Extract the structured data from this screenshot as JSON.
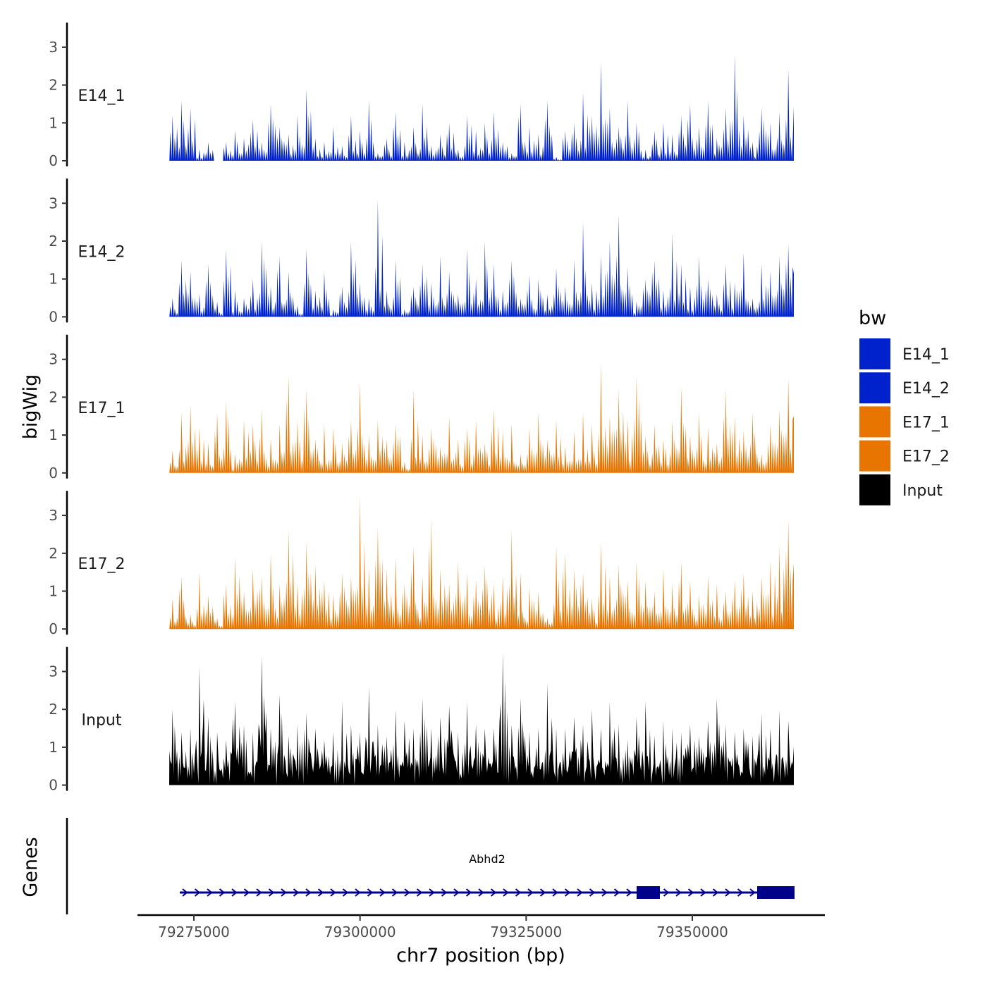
{
  "chart_data": {
    "type": "area",
    "title": "",
    "xlabel": "chr7 position (bp)",
    "ylabel": "bigWig",
    "gene_track_label": "Genes",
    "xlim": [
      79271290,
      79365275
    ],
    "x_ticks": [
      79275000,
      79300000,
      79325000,
      79350000
    ],
    "x_tick_labels": [
      "79275000",
      "79300000",
      "79325000",
      "79350000"
    ],
    "ylim": [
      0,
      3.6
    ],
    "y_ticks": [
      0,
      1,
      2,
      3
    ],
    "y_tick_labels": [
      "0",
      "1",
      "2",
      "3"
    ],
    "legend": {
      "title": "bw",
      "position": "right",
      "entries": [
        "E14_1",
        "E14_2",
        "E17_1",
        "E17_2",
        "Input"
      ]
    },
    "series": [
      {
        "name": "E14_1",
        "color": "#0022CC",
        "values": [
          1.2,
          1.6,
          1.4,
          0.3,
          0.5,
          0,
          0.5,
          0.8,
          0.6,
          1.1,
          0.5,
          1.5,
          0.9,
          0.7,
          1.2,
          1.9,
          0.6,
          0.5,
          0.9,
          0.4,
          1.2,
          0.8,
          1.6,
          0.2,
          0.6,
          1.3,
          0.5,
          0.9,
          1.5,
          0.4,
          0.7,
          1.0,
          0.3,
          1.2,
          0.8,
          1.0,
          1.3,
          0.5,
          0.2,
          1.5,
          0.9,
          0.7,
          1.6,
          0.1,
          0.8,
          1.0,
          1.8,
          1.2,
          2.6,
          1.4,
          0.9,
          1.6,
          1.0,
          0.3,
          0.8,
          1.0,
          0.7,
          1.2,
          1.5,
          0.9,
          1.6,
          0.6,
          1.4,
          2.8,
          1.2,
          0.5,
          1.4,
          1.0,
          1.3,
          2.4
        ]
      },
      {
        "name": "E14_2",
        "color": "#0022CC",
        "values": [
          0.5,
          1.5,
          1.2,
          0.6,
          1.4,
          0.4,
          1.8,
          0.7,
          0.5,
          1.0,
          2.0,
          0.8,
          1.6,
          1.2,
          0.3,
          1.8,
          0.7,
          1.2,
          0.2,
          0.8,
          2.0,
          0.9,
          0.5,
          3.1,
          0.7,
          1.5,
          0.2,
          0.8,
          1.4,
          0.9,
          1.6,
          1.2,
          0.6,
          1.8,
          1.0,
          2.0,
          1.4,
          0.7,
          1.5,
          0.5,
          1.1,
          1.0,
          0.6,
          1.3,
          0.8,
          1.5,
          2.5,
          0.9,
          1.6,
          2.0,
          2.7,
          1.3,
          0.4,
          1.0,
          1.5,
          0.7,
          2.2,
          1.4,
          0.8,
          1.6,
          1.0,
          0.6,
          1.4,
          0.9,
          1.7,
          0.5,
          1.4,
          1.2,
          1.6,
          1.9
        ]
      },
      {
        "name": "E17_1",
        "color": "#E87500",
        "values": [
          0.6,
          1.6,
          1.8,
          1.2,
          0.8,
          1.6,
          1.9,
          0.5,
          1.4,
          1.3,
          1.7,
          0.9,
          1.3,
          2.6,
          1.4,
          2.2,
          0.9,
          1.3,
          1.2,
          0.8,
          1.4,
          2.4,
          1.0,
          1.4,
          0.9,
          1.3,
          0.3,
          2.2,
          1.0,
          1.2,
          0.7,
          1.5,
          0.9,
          1.2,
          1.4,
          0.8,
          1.7,
          1.1,
          1.3,
          0.5,
          1.2,
          1.6,
          0.9,
          1.4,
          0.7,
          1.1,
          1.6,
          1.3,
          2.9,
          1.5,
          2.2,
          1.4,
          2.6,
          1.0,
          1.3,
          0.9,
          1.4,
          2.3,
          1.0,
          1.6,
          1.2,
          0.8,
          2.2,
          1.5,
          1.1,
          1.6,
          0.5,
          1.3,
          1.7,
          2.5
        ]
      },
      {
        "name": "E17_2",
        "color": "#E87500",
        "values": [
          0.8,
          1.4,
          0.4,
          1.5,
          0.9,
          0.3,
          1.2,
          1.9,
          1.0,
          1.6,
          1.4,
          2.0,
          1.2,
          2.6,
          1.2,
          2.3,
          1.7,
          1.3,
          0.9,
          1.5,
          1.4,
          3.5,
          1.6,
          2.7,
          1.6,
          1.9,
          1.2,
          2.2,
          1.4,
          2.9,
          1.6,
          1.2,
          1.8,
          1.5,
          1.3,
          1.7,
          1.2,
          1.4,
          2.6,
          1.5,
          1.1,
          1.0,
          0.3,
          2.2,
          2.0,
          1.6,
          1.5,
          0.8,
          2.3,
          1.4,
          1.7,
          1.3,
          1.8,
          1.3,
          1.0,
          1.6,
          1.2,
          1.8,
          1.3,
          0.9,
          1.4,
          1.2,
          1.0,
          1.3,
          1.5,
          1.0,
          1.4,
          1.8,
          2.2,
          2.9
        ]
      },
      {
        "name": "Input",
        "color": "#000000",
        "values": [
          2.0,
          1.4,
          1.5,
          3.1,
          1.8,
          1.4,
          1.2,
          2.2,
          1.6,
          1.4,
          3.4,
          1.5,
          2.4,
          1.3,
          1.6,
          1.9,
          1.5,
          1.2,
          1.4,
          2.2,
          1.6,
          1.4,
          2.6,
          1.6,
          1.3,
          2.0,
          1.7,
          1.5,
          2.3,
          1.5,
          1.8,
          2.1,
          1.4,
          2.2,
          1.6,
          1.5,
          1.5,
          3.5,
          1.6,
          2.3,
          1.4,
          1.5,
          2.7,
          1.5,
          1.5,
          1.8,
          1.6,
          2.0,
          1.5,
          2.2,
          1.6,
          1.2,
          1.8,
          2.2,
          1.3,
          1.7,
          1.5,
          1.4,
          1.6,
          1.3,
          1.7,
          2.3,
          1.6,
          1.4,
          1.5,
          1.3,
          1.9,
          1.5,
          2.0,
          1.7
        ]
      }
    ],
    "gene": {
      "name": "Abhd2",
      "strand": "+",
      "color": "#00008B",
      "start": 79272880,
      "end": 79365380,
      "exons": [
        [
          79341620,
          79345120
        ],
        [
          79359760,
          79365380
        ]
      ]
    }
  }
}
